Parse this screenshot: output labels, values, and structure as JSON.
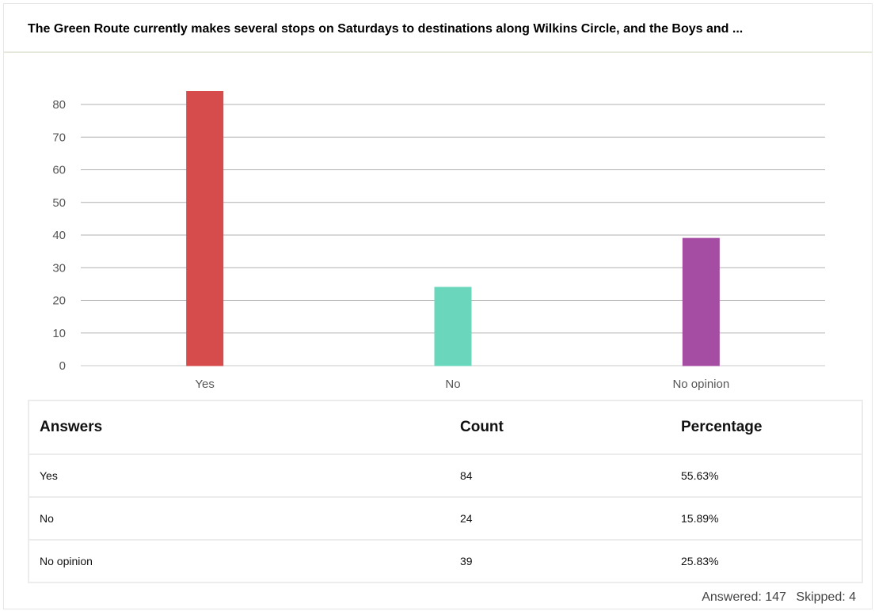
{
  "question": {
    "title": "The Green Route currently makes several stops on Saturdays to destinations along Wilkins Circle, and the Boys and ..."
  },
  "chart_data": {
    "type": "bar",
    "categories": [
      "Yes",
      "No",
      "No opinion"
    ],
    "values": [
      84,
      24,
      39
    ],
    "colors": [
      "#d64b4b",
      "#6ad7bd",
      "#a54ca3"
    ],
    "ylim": [
      0,
      80
    ],
    "yticks": [
      0,
      10,
      20,
      30,
      40,
      50,
      60,
      70,
      80
    ],
    "grid": true,
    "legend": "none"
  },
  "table": {
    "headers": [
      "Answers",
      "Count",
      "Percentage"
    ],
    "rows": [
      [
        "Yes",
        "84",
        "55.63%"
      ],
      [
        "No",
        "24",
        "15.89%"
      ],
      [
        "No opinion",
        "39",
        "25.83%"
      ]
    ]
  },
  "footer": {
    "answered": "Answered: 147",
    "skipped": "Skipped: 4"
  }
}
